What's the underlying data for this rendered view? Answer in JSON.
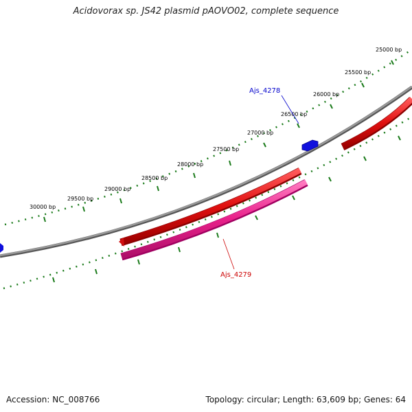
{
  "title": "Acidovorax sp. JS42 plasmid pAOVO02, complete sequence",
  "accession": "Accession: NC_008766",
  "topology_info": "Topology: circular; Length: 63,609 bp; Genes: 64",
  "tick_labels": [
    "25000 bp",
    "25500 bp",
    "26000 bp",
    "26500 bp",
    "27000 bp",
    "27500 bp",
    "28000 bp",
    "28500 bp",
    "29000 bp",
    "29500 bp",
    "30000 bp"
  ],
  "gene_labels": {
    "forward": "Ajs_4278",
    "reverse": "Ajs_4279"
  },
  "colors": {
    "backbone": "#7a7a7a",
    "ticks": "#1a7a1a",
    "forward_small": "#1010dd",
    "forward_cds": "#e01010",
    "reverse_cds": "#e8208a",
    "label_forward": "#0000cc",
    "label_reverse": "#cc0000"
  }
}
